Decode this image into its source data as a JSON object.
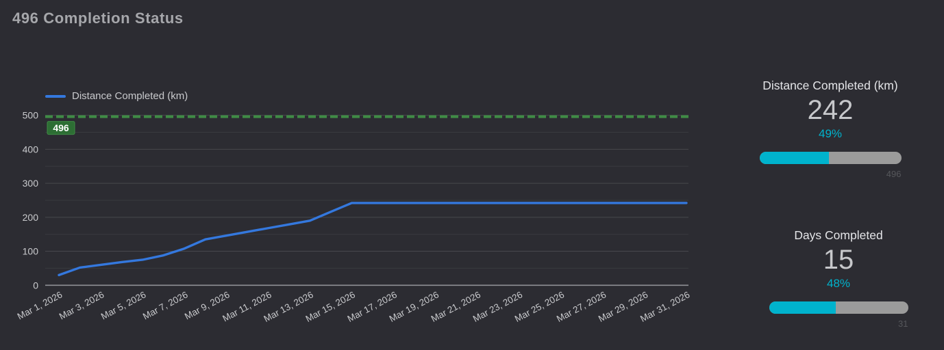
{
  "title": "496 Completion Status",
  "colors": {
    "background": "#2c2c32",
    "accent_teal": "#00b3cd",
    "bar_track_gray": "#9b9b9b",
    "line_blue": "#3478de",
    "ref_green": "#3f8c45",
    "badge_green": "#2d6e34",
    "text_light": "#c9cacd",
    "text_dim": "#56575b",
    "grid_major": "#47484d",
    "grid_minor": "#393a3f",
    "axis_line": "#909196"
  },
  "chart_data": {
    "type": "line",
    "title": "496 Completion Status",
    "grid": true,
    "legend_position": "top-left",
    "x_points": 31,
    "x_tick_step": 2,
    "x_tick_labels": [
      "Mar 1, 2026",
      "Mar 3, 2026",
      "Mar 5, 2026",
      "Mar 7, 2026",
      "Mar 9, 2026",
      "Mar 11, 2026",
      "Mar 13, 2026",
      "Mar 15, 2026",
      "Mar 17, 2026",
      "Mar 19, 2026",
      "Mar 21, 2026",
      "Mar 23, 2026",
      "Mar 25, 2026",
      "Mar 27, 2026",
      "Mar 29, 2026",
      "Mar 31, 2026"
    ],
    "ylim": [
      0,
      500
    ],
    "y_tick_step": 100,
    "y_minor_step": 50,
    "y_tick_labels": [
      "0",
      "100",
      "200",
      "300",
      "400",
      "500"
    ],
    "series": [
      {
        "name": "Distance Completed (km)",
        "color": "#3478de",
        "values": [
          30,
          52,
          60,
          68,
          75,
          88,
          108,
          135,
          146,
          157,
          168,
          179,
          190,
          216,
          242,
          242,
          242,
          242,
          242,
          242,
          242,
          242,
          242,
          242,
          242,
          242,
          242,
          242,
          242,
          242,
          242
        ]
      }
    ],
    "reference_line": {
      "value": 496,
      "label": "496",
      "color": "#3f8c45",
      "style": "dashed"
    }
  },
  "legend": {
    "label": "Distance Completed (km)"
  },
  "kpis": [
    {
      "title": "Distance Completed (km)",
      "value": "242",
      "percent": "49%",
      "percent_value": 49,
      "target": "496"
    },
    {
      "title": "Days Completed",
      "value": "15",
      "percent": "48%",
      "percent_value": 48,
      "target": "31"
    }
  ]
}
